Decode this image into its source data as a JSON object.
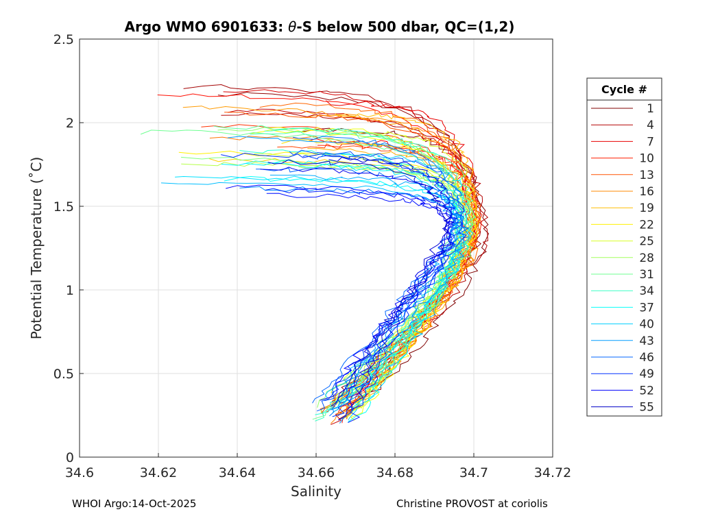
{
  "chart_data": {
    "type": "line",
    "title": "Argo WMO 6901633: θ-S below 500 dbar,  QC=(1,2)",
    "title_prefix": "Argo WMO 6901633: ",
    "title_theta": "θ",
    "title_suffix": "-S below 500 dbar,  QC=(1,2)",
    "xlabel": "Salinity",
    "ylabel": "Potential Temperature (˚C)",
    "xlim": [
      34.6,
      34.72
    ],
    "ylim": [
      0,
      2.5
    ],
    "xticks": [
      "34.6",
      "34.62",
      "34.64",
      "34.66",
      "34.68",
      "34.7",
      "34.72"
    ],
    "xtick_values": [
      34.6,
      34.62,
      34.64,
      34.66,
      34.68,
      34.7,
      34.72
    ],
    "yticks": [
      "0",
      "0.5",
      "1",
      "1.5",
      "2",
      "2.5"
    ],
    "ytick_values": [
      0,
      0.5,
      1,
      1.5,
      2,
      2.5
    ],
    "grid": true,
    "legend_title": "Cycle #",
    "legend_position": "right-outside",
    "cycles": [
      1,
      4,
      7,
      10,
      13,
      16,
      19,
      22,
      25,
      28,
      31,
      34,
      37,
      40,
      43,
      46,
      49,
      52,
      55
    ],
    "colormap": "jet (reversed: cycle 1 dark red to cycle 55 dark blue)",
    "series_template": {
      "description": "theta-S profiles, approx. shared shape (salinity, theta) ordered surface-side to deep",
      "upper_branch_end_theta": 1.3,
      "max_salinity": 34.7,
      "deep_end": {
        "salinity": 34.66,
        "theta": 0.2
      }
    }
  },
  "footer": {
    "left": "WHOI Argo:14-Oct-2025",
    "right": "Christine PROVOST at coriolis"
  },
  "colors": {
    "axes": "#262626",
    "grid": "#dfdfdf",
    "text": "#000000"
  }
}
